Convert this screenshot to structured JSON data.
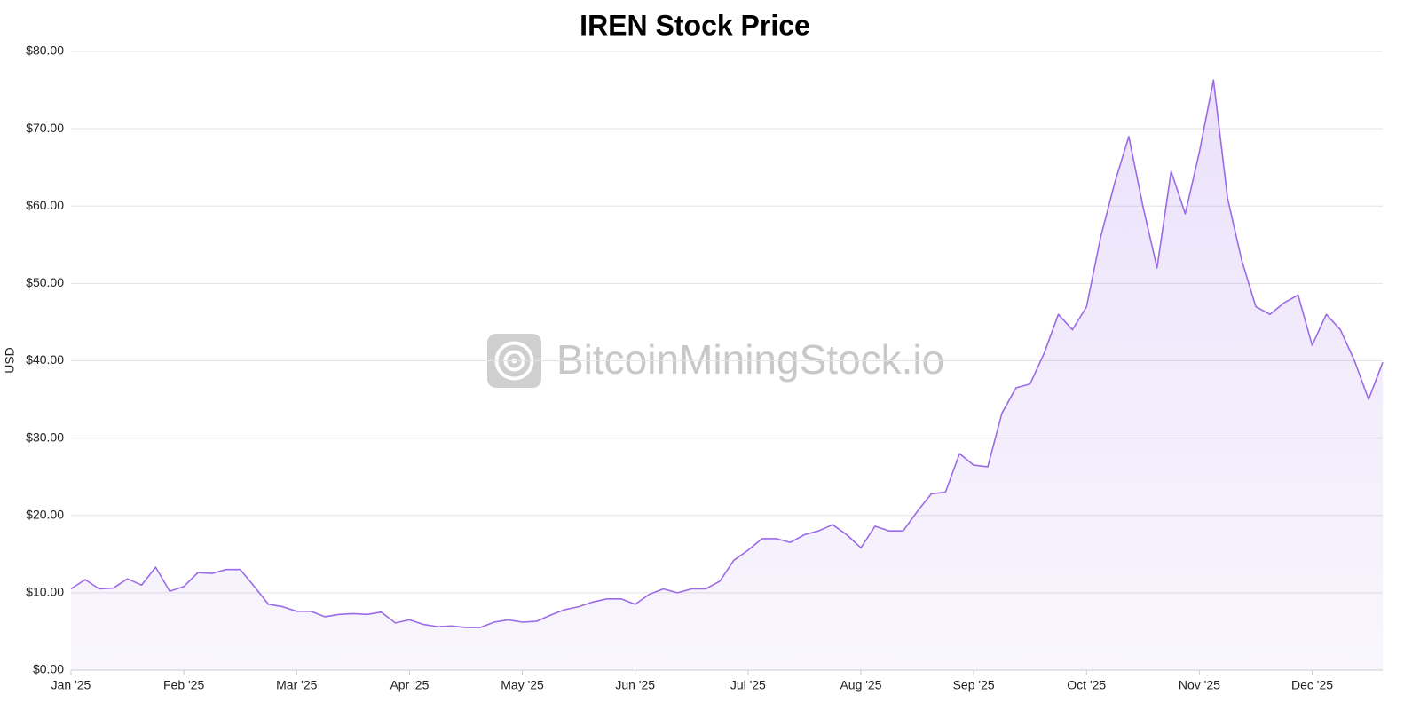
{
  "chart_data": {
    "type": "area",
    "title": "IREN Stock Price",
    "ylabel": "USD",
    "watermark": "BitcoinMiningStock.io",
    "categories": [
      "Jan '25",
      null,
      null,
      null,
      null,
      null,
      null,
      null,
      "Feb '25",
      null,
      null,
      null,
      null,
      null,
      null,
      null,
      "Mar '25",
      null,
      null,
      null,
      null,
      null,
      null,
      null,
      "Apr '25",
      null,
      null,
      null,
      null,
      null,
      null,
      null,
      "May '25",
      null,
      null,
      null,
      null,
      null,
      null,
      null,
      "Jun '25",
      null,
      null,
      null,
      null,
      null,
      null,
      null,
      "Jul '25",
      null,
      null,
      null,
      null,
      null,
      null,
      null,
      "Aug '25",
      null,
      null,
      null,
      null,
      null,
      null,
      null,
      "Sep '25",
      null,
      null,
      null,
      null,
      null,
      null,
      null,
      "Oct '25",
      null,
      null,
      null,
      null,
      null,
      null,
      null,
      "Nov '25",
      null,
      null,
      null,
      null,
      null,
      null,
      null,
      "Dec '25",
      null,
      null,
      null,
      null,
      null
    ],
    "values": [
      10.5,
      11.7,
      10.5,
      10.6,
      11.8,
      11,
      13.3,
      10.2,
      10.8,
      12.6,
      12.5,
      13,
      13,
      10.8,
      8.5,
      8.2,
      7.6,
      7.6,
      6.9,
      7.2,
      7.3,
      7.2,
      7.5,
      6.1,
      6.5,
      5.9,
      5.6,
      5.7,
      5.5,
      5.5,
      6.2,
      6.5,
      6.2,
      6.3,
      7.1,
      7.8,
      8.2,
      8.8,
      9.2,
      9.2,
      8.5,
      9.8,
      10.5,
      10,
      10.5,
      10.5,
      11.5,
      14.2,
      15.5,
      17,
      17,
      16.5,
      17.5,
      18,
      18.8,
      17.5,
      15.8,
      18.6,
      18,
      18,
      20.5,
      22.8,
      23,
      28,
      26.5,
      26.3,
      33.2,
      36.5,
      37,
      41,
      46,
      44,
      47,
      56,
      63,
      69,
      60,
      52,
      64.5,
      59,
      67,
      76.3,
      61,
      53,
      47,
      46,
      47.5,
      48.5,
      42,
      46,
      44,
      40,
      35,
      39.8
    ],
    "color": "#9b6be6",
    "ylim": [
      0,
      80
    ],
    "yticks": [
      {
        "value": 0,
        "label": "$0.00"
      },
      {
        "value": 10,
        "label": "$10.00"
      },
      {
        "value": 20,
        "label": "$20.00"
      },
      {
        "value": 30,
        "label": "$30.00"
      },
      {
        "value": 40,
        "label": "$40.00"
      },
      {
        "value": 50,
        "label": "$50.00"
      },
      {
        "value": 60,
        "label": "$60.00"
      },
      {
        "value": 70,
        "label": "$70.00"
      },
      {
        "value": 80,
        "label": "$80.00"
      }
    ],
    "grid": true
  }
}
